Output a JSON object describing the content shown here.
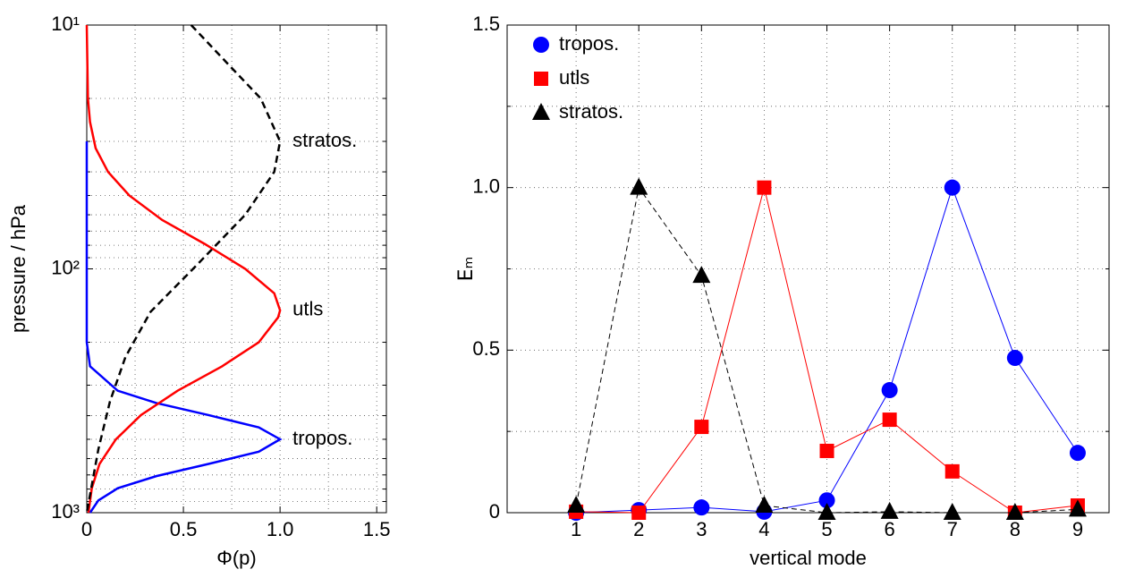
{
  "chart_data": [
    {
      "type": "line",
      "xlabel": "Φ(p)",
      "ylabel": "pressure / hPa",
      "xlim": [
        0,
        1.55
      ],
      "xticks": [
        0,
        0.5,
        {
          "value": 1,
          "label": "1.0"
        },
        1.5
      ],
      "xminor": [
        0.25,
        0.75,
        1.25
      ],
      "yscale": "log",
      "yreverse": true,
      "grid": true,
      "ylim": [
        10,
        1000
      ],
      "yticks": [
        {
          "value": 10,
          "label": "10¹"
        },
        {
          "value": 100,
          "label": "10²"
        },
        {
          "value": 1000,
          "label": "10³"
        }
      ],
      "yminor": [
        20,
        30,
        40,
        50,
        60,
        70,
        80,
        90,
        200,
        300,
        400,
        500,
        600,
        700,
        800,
        900
      ],
      "series": [
        {
          "name": "tropos.",
          "color": "#0000ff",
          "dash": false,
          "x": [
            0,
            0,
            0.017,
            0.16,
            0.36,
            0.63,
            0.89,
            1.0,
            0.89,
            0.63,
            0.36,
            0.16,
            0.06,
            0.017
          ],
          "values": [
            30,
            200,
            251,
            316,
            355,
            398,
            447,
            500,
            562,
            631,
            708,
            794,
            891,
            1000
          ]
        },
        {
          "name": "utls",
          "color": "#ff0000",
          "dash": false,
          "x": [
            0,
            0.006,
            0.017,
            0.046,
            0.11,
            0.22,
            0.39,
            0.61,
            0.82,
            0.97,
            1.0,
            0.99,
            0.89,
            0.7,
            0.47,
            0.28,
            0.15,
            0.066,
            0.026,
            0.009
          ],
          "values": [
            10,
            20,
            25,
            32,
            40,
            50,
            63,
            79,
            100,
            126,
            148,
            158,
            200,
            251,
            316,
            398,
            501,
            631,
            794,
            1000
          ]
        },
        {
          "name": "stratos.",
          "color": "#000000",
          "dash": true,
          "x": [
            0.54,
            0.75,
            0.9,
            1.0,
            0.97,
            0.82,
            0.55,
            0.33,
            0.2,
            0.12,
            0.06,
            0
          ],
          "values": [
            10,
            15,
            20,
            30,
            40,
            60,
            100,
            150,
            230,
            350,
            550,
            1000
          ]
        }
      ]
    },
    {
      "type": "line",
      "xlabel": "vertical mode",
      "ylabel": "Eₘ",
      "legend": "upper left",
      "grid": true,
      "x": [
        1,
        2,
        3,
        4,
        5,
        6,
        7,
        8,
        9
      ],
      "xlim": [
        -0.1,
        9.5
      ],
      "xticks": [
        1,
        2,
        3,
        4,
        5,
        6,
        7,
        8,
        9
      ],
      "ylim": [
        0,
        1.5
      ],
      "yticks": [
        0,
        0.5,
        {
          "value": 1,
          "label": "1.0"
        },
        1.5
      ],
      "yminor": [
        0.25,
        0.75,
        1.25
      ],
      "series": [
        {
          "name": "tropos.",
          "color": "#0000ff",
          "marker": "circle",
          "dash": false,
          "values": [
            0,
            0.008,
            0.016,
            0.003,
            0.038,
            0.377,
            1.0,
            0.476,
            0.184
          ]
        },
        {
          "name": "utls",
          "color": "#ff0000",
          "marker": "square",
          "dash": false,
          "values": [
            0.003,
            0,
            0.264,
            1.0,
            0.19,
            0.286,
            0.127,
            0,
            0.022
          ]
        },
        {
          "name": "stratos.",
          "color": "#000000",
          "marker": "triangle",
          "dash": true,
          "values": [
            0.022,
            1.0,
            0.729,
            0.022,
            0,
            0.003,
            0,
            0,
            0.01
          ]
        }
      ]
    }
  ]
}
